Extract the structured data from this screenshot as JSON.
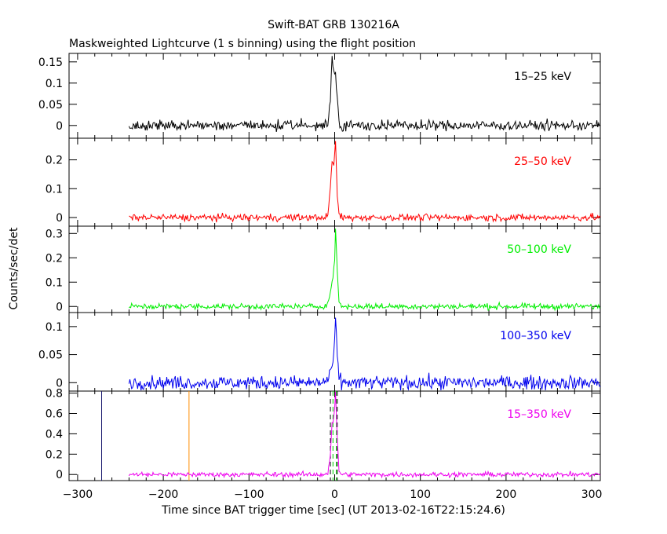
{
  "chart_data": {
    "type": "line",
    "title": "Swift-BAT GRB 130216A",
    "subtitle": "Maskweighted Lightcurve (1 s binning) using the flight position",
    "xlabel": "Time since BAT trigger time [sec] (UT 2013-02-16T22:15:24.6)",
    "ylabel": "Counts/sec/det",
    "xlim": [
      -310,
      310
    ],
    "x_ticks": [
      -300,
      -200,
      -100,
      0,
      100,
      200,
      300
    ],
    "data_start": -240,
    "data_end": 310,
    "panels": [
      {
        "name": "15-25 keV",
        "label": "15–25 keV",
        "color": "#000000",
        "ylim": [
          -0.03,
          0.17
        ],
        "y_ticks": [
          0,
          0.05,
          0.1,
          0.15
        ],
        "y_tick_labels": [
          "0",
          "0.05",
          "0.1",
          "0.15"
        ],
        "noise": 0.006,
        "peak_points": [
          [
            -15,
            0
          ],
          [
            -8,
            0.005
          ],
          [
            -5,
            0.06
          ],
          [
            -3,
            0.16
          ],
          [
            -1,
            0.12
          ],
          [
            1,
            0.13
          ],
          [
            3,
            0.07
          ],
          [
            5,
            0.01
          ],
          [
            8,
            0
          ]
        ]
      },
      {
        "name": "25-50 keV",
        "label": "25–50 keV",
        "color": "#ff0000",
        "ylim": [
          -0.03,
          0.275
        ],
        "y_ticks": [
          0,
          0.1,
          0.2
        ],
        "y_tick_labels": [
          "0",
          "0.1",
          "0.2"
        ],
        "noise": 0.006,
        "peak_points": [
          [
            -15,
            0
          ],
          [
            -8,
            0.005
          ],
          [
            -5,
            0.1
          ],
          [
            -3,
            0.2
          ],
          [
            -1,
            0.18
          ],
          [
            0,
            0.22
          ],
          [
            1,
            0.26
          ],
          [
            3,
            0.08
          ],
          [
            5,
            0.01
          ],
          [
            8,
            0
          ]
        ]
      },
      {
        "name": "50-100 keV",
        "label": "50–100 keV",
        "color": "#00ee00",
        "ylim": [
          -0.025,
          0.33
        ],
        "y_ticks": [
          0,
          0.1,
          0.2,
          0.3
        ],
        "y_tick_labels": [
          "0",
          "0.1",
          "0.2",
          "0.3"
        ],
        "noise": 0.006,
        "peak_points": [
          [
            -15,
            0
          ],
          [
            -8,
            0.01
          ],
          [
            -5,
            0.06
          ],
          [
            -3,
            0.1
          ],
          [
            -1,
            0.15
          ],
          [
            0,
            0.2
          ],
          [
            1,
            0.31
          ],
          [
            3,
            0.15
          ],
          [
            5,
            0.02
          ],
          [
            8,
            0
          ]
        ]
      },
      {
        "name": "100-350 keV",
        "label": "100–350 keV",
        "color": "#0000ee",
        "ylim": [
          -0.015,
          0.125
        ],
        "y_ticks": [
          0,
          0.05,
          0.1
        ],
        "y_tick_labels": [
          "0",
          "0.05",
          "0.1"
        ],
        "noise": 0.006,
        "peak_points": [
          [
            -15,
            0
          ],
          [
            -8,
            0.005
          ],
          [
            -5,
            0.015
          ],
          [
            -3,
            0.03
          ],
          [
            -1,
            0.05
          ],
          [
            0,
            0.07
          ],
          [
            1,
            0.11
          ],
          [
            3,
            0.05
          ],
          [
            5,
            0.01
          ],
          [
            8,
            0
          ]
        ]
      },
      {
        "name": "15-350 keV",
        "label": "15–350 keV",
        "color": "#ee00ee",
        "ylim": [
          -0.06,
          0.82
        ],
        "y_ticks": [
          0,
          0.2,
          0.4,
          0.6,
          0.8
        ],
        "y_tick_labels": [
          "0",
          "0.2",
          "0.4",
          "0.6",
          "0.8"
        ],
        "noise": 0.012,
        "peak_points": [
          [
            -15,
            0
          ],
          [
            -8,
            0.01
          ],
          [
            -5,
            0.2
          ],
          [
            -3,
            0.5
          ],
          [
            -1,
            0.55
          ],
          [
            0,
            0.65
          ],
          [
            1,
            0.8
          ],
          [
            3,
            0.35
          ],
          [
            5,
            0.04
          ],
          [
            8,
            0
          ]
        ]
      }
    ],
    "markers": [
      {
        "name": "marker-line-navy",
        "x": -272,
        "color": "#1a1a6e",
        "style": "solid"
      },
      {
        "name": "marker-line-orange",
        "x": -170,
        "color": "#ff8c00",
        "style": "solid"
      },
      {
        "name": "marker-line-dashed-1",
        "x": -5,
        "color": "#000000",
        "style": "dashed"
      },
      {
        "name": "marker-line-dashed-2",
        "x": 3,
        "color": "#000000",
        "style": "dashed"
      },
      {
        "name": "marker-line-green-1",
        "x": -2,
        "color": "#00cc00",
        "style": "dashed"
      },
      {
        "name": "marker-line-green-2",
        "x": 2,
        "color": "#00cc00",
        "style": "dashed"
      }
    ]
  }
}
